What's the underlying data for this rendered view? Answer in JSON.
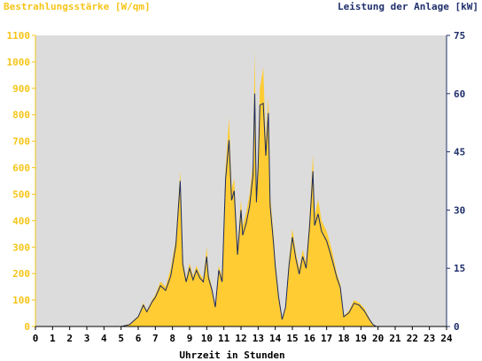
{
  "chart_data": {
    "type": "area",
    "left_axis_title": "Bestrahlungsstärke [W/qm]",
    "right_axis_title": "Leistung der Anlage [kW]",
    "xlabel": "Uhrzeit in Stunden",
    "xlim": [
      0,
      24
    ],
    "ylim_left": [
      0,
      1100
    ],
    "ylim_right": [
      0,
      75
    ],
    "x_ticks": [
      "0",
      "1",
      "2",
      "3",
      "4",
      "5",
      "6",
      "7",
      "8",
      "9",
      "10",
      "11",
      "12",
      "13",
      "14",
      "15",
      "16",
      "17",
      "18",
      "19",
      "20",
      "21",
      "22",
      "23",
      "24"
    ],
    "y_left_ticks": [
      "0",
      "100",
      "200",
      "300",
      "400",
      "500",
      "600",
      "700",
      "800",
      "900",
      "1000",
      "1100"
    ],
    "y_right_ticks": [
      "0",
      "15",
      "30",
      "45",
      "60",
      "75"
    ],
    "grid": false,
    "colors": {
      "irradiance": "#ffcc33",
      "power": "#1a2a5e",
      "plot_bg": "#dcdcdc",
      "left_axis": "#f5c518",
      "right_axis": "#1f2f6b"
    },
    "series": [
      {
        "name": "Bestrahlungsstärke",
        "axis": "left",
        "x": [
          5.0,
          5.5,
          6.0,
          6.3,
          6.5,
          6.8,
          7.0,
          7.3,
          7.6,
          7.9,
          8.2,
          8.45,
          8.6,
          8.8,
          9.0,
          9.2,
          9.4,
          9.6,
          9.8,
          10.0,
          10.1,
          10.3,
          10.5,
          10.7,
          10.9,
          11.1,
          11.3,
          11.45,
          11.6,
          11.8,
          12.0,
          12.1,
          12.3,
          12.5,
          12.7,
          12.8,
          12.9,
          13.0,
          13.1,
          13.3,
          13.45,
          13.6,
          13.7,
          13.9,
          14.0,
          14.2,
          14.4,
          14.6,
          14.8,
          15.0,
          15.2,
          15.4,
          15.6,
          15.8,
          16.0,
          16.2,
          16.3,
          16.5,
          16.7,
          17.0,
          17.3,
          17.6,
          17.8,
          18.0,
          18.3,
          18.6,
          18.9,
          19.2,
          19.5,
          19.7,
          19.9,
          20.0
        ],
        "y": [
          0,
          10,
          40,
          90,
          60,
          100,
          120,
          170,
          150,
          220,
          330,
          590,
          250,
          180,
          240,
          190,
          230,
          200,
          180,
          300,
          200,
          150,
          80,
          230,
          190,
          600,
          790,
          520,
          560,
          300,
          480,
          380,
          430,
          500,
          620,
          1040,
          500,
          650,
          900,
          980,
          700,
          870,
          500,
          350,
          250,
          120,
          30,
          80,
          250,
          370,
          280,
          220,
          290,
          240,
          410,
          650,
          420,
          480,
          400,
          360,
          290,
          200,
          160,
          40,
          60,
          100,
          90,
          70,
          30,
          10,
          0,
          0
        ]
      },
      {
        "name": "Leistung der Anlage",
        "axis": "right",
        "x": [
          5.0,
          5.5,
          6.0,
          6.3,
          6.5,
          6.8,
          7.0,
          7.3,
          7.6,
          7.9,
          8.2,
          8.45,
          8.6,
          8.8,
          9.0,
          9.2,
          9.4,
          9.6,
          9.8,
          10.0,
          10.1,
          10.3,
          10.5,
          10.7,
          10.9,
          11.1,
          11.3,
          11.45,
          11.6,
          11.8,
          12.0,
          12.1,
          12.3,
          12.5,
          12.7,
          12.8,
          12.9,
          13.0,
          13.1,
          13.3,
          13.45,
          13.6,
          13.7,
          13.9,
          14.0,
          14.2,
          14.4,
          14.6,
          14.8,
          15.0,
          15.2,
          15.4,
          15.6,
          15.8,
          16.0,
          16.2,
          16.3,
          16.5,
          16.7,
          17.0,
          17.3,
          17.6,
          17.8,
          18.0,
          18.3,
          18.6,
          18.9,
          19.2,
          19.5,
          19.7,
          19.9,
          20.0
        ],
        "y": [
          0,
          0.5,
          2.5,
          5.5,
          3.8,
          6.3,
          7.5,
          10.5,
          9.3,
          13.0,
          21.0,
          37.5,
          16.0,
          11.5,
          15.0,
          12.0,
          14.5,
          12.5,
          11.5,
          18.0,
          12.5,
          9.5,
          5.0,
          14.5,
          11.5,
          38.0,
          48.0,
          32.5,
          35.0,
          18.5,
          30.0,
          23.5,
          26.5,
          31.0,
          39.0,
          60.0,
          32.0,
          41.0,
          57.0,
          57.5,
          44.0,
          55.0,
          31.0,
          21.5,
          15.5,
          7.5,
          1.8,
          5.0,
          15.5,
          23.0,
          17.5,
          13.5,
          18.0,
          15.0,
          25.5,
          40.0,
          26.0,
          29.0,
          24.5,
          22.0,
          17.5,
          12.5,
          10.0,
          2.5,
          3.5,
          6.0,
          5.5,
          4.0,
          1.8,
          0.5,
          0,
          0
        ]
      }
    ]
  }
}
